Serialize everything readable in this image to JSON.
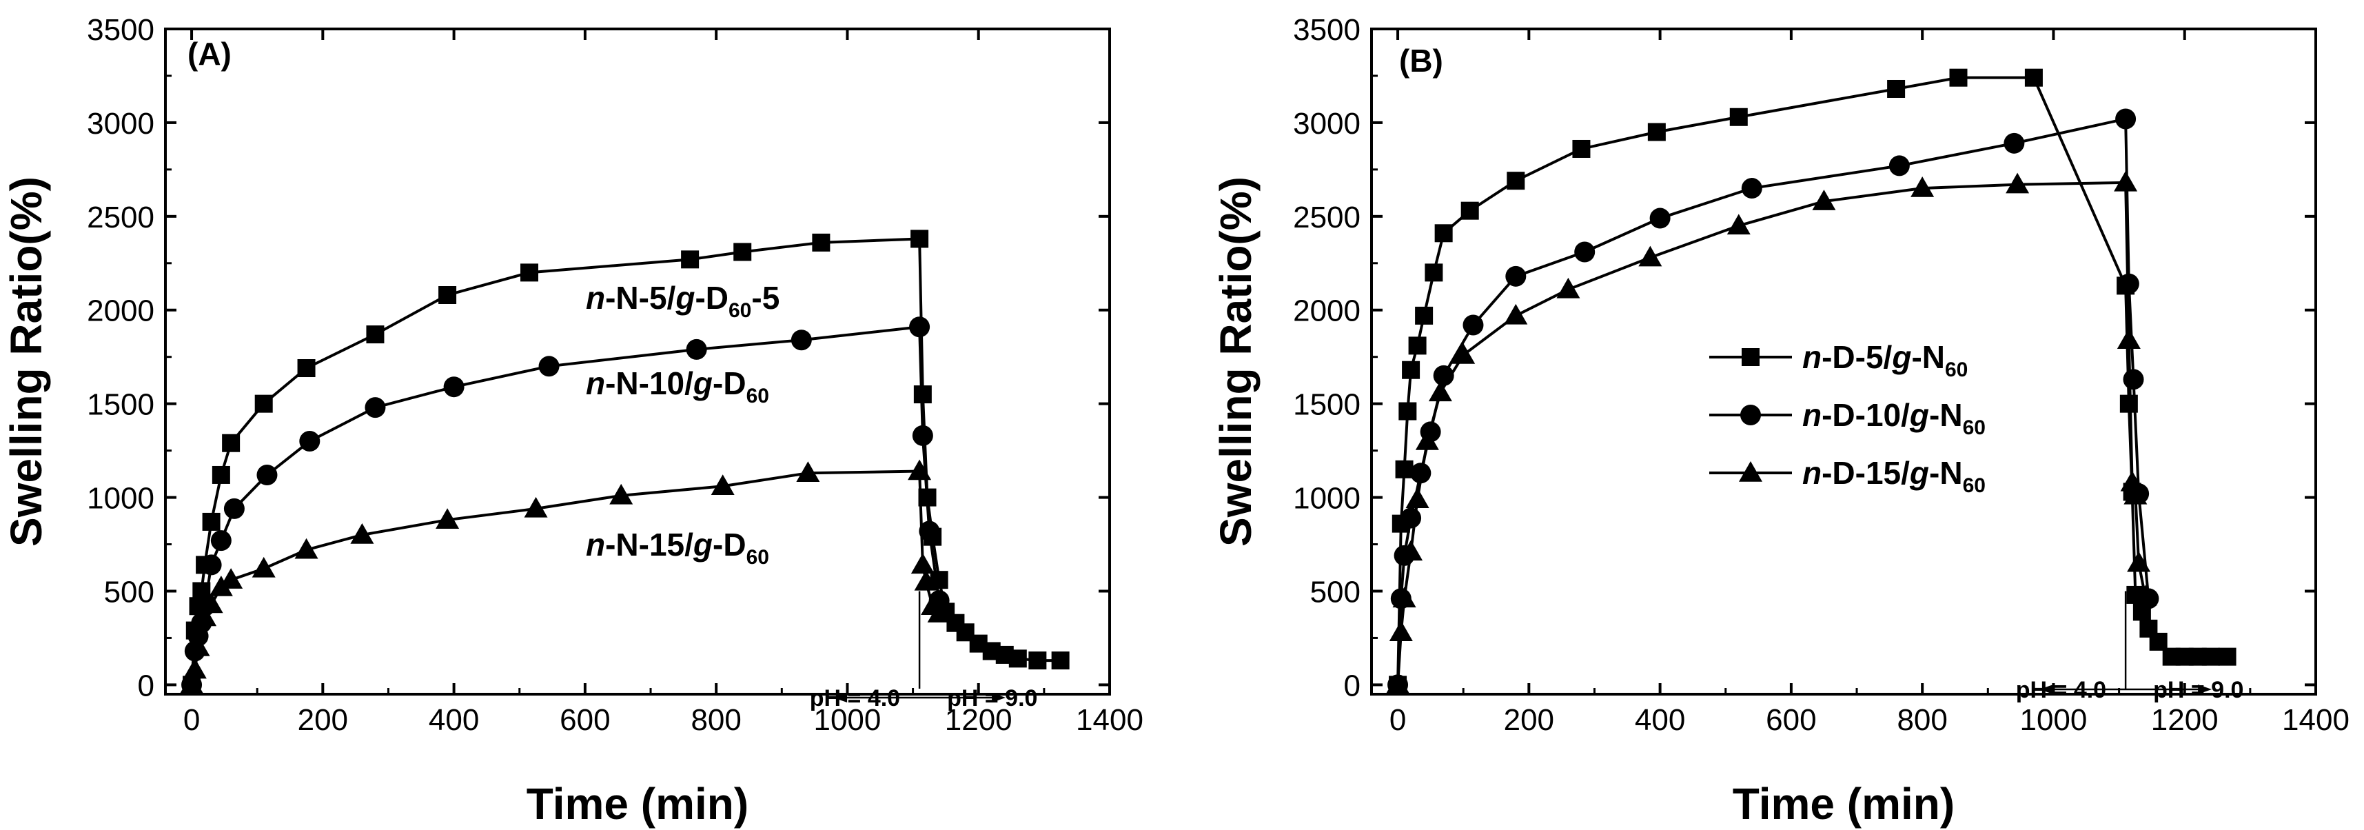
{
  "chart_data": [
    {
      "type": "line",
      "panel_label": "(A)",
      "xlabel": "Time (min)",
      "ylabel": "Swelling Ratio(%)",
      "xlim": [
        -40,
        1400
      ],
      "ylim": [
        -50,
        3500
      ],
      "xticks": [
        0,
        200,
        400,
        600,
        800,
        1000,
        1200,
        1400
      ],
      "yticks": [
        0,
        500,
        1000,
        1500,
        2000,
        2500,
        3000,
        3500
      ],
      "legend": "inline labels",
      "annotations": {
        "ph_left": "pH = 4.0",
        "ph_right": "pH = 9.0",
        "switch_time": 1110
      },
      "series": [
        {
          "name": "n-N-5/g-D60-5",
          "label_parts": [
            {
              "text": "n",
              "style": "i"
            },
            {
              "text": "-N-5/",
              "style": "n"
            },
            {
              "text": "g",
              "style": "i"
            },
            {
              "text": "-D",
              "style": "n"
            },
            {
              "text": "60",
              "style": "sub"
            },
            {
              "text": "-5",
              "style": "n"
            }
          ],
          "marker": "square",
          "x": [
            0,
            5,
            10,
            15,
            20,
            30,
            45,
            60,
            110,
            175,
            280,
            390,
            515,
            760,
            840,
            960,
            1110,
            1115,
            1122,
            1130,
            1140,
            1150,
            1165,
            1180,
            1200,
            1220,
            1240,
            1260,
            1290,
            1325
          ],
          "y": [
            0,
            290,
            420,
            500,
            640,
            870,
            1120,
            1290,
            1500,
            1690,
            1870,
            2080,
            2200,
            2270,
            2310,
            2360,
            2380,
            1550,
            1000,
            790,
            560,
            390,
            330,
            280,
            220,
            180,
            160,
            140,
            130,
            130
          ]
        },
        {
          "name": "n-N-10/g-D60",
          "label_parts": [
            {
              "text": "n",
              "style": "i"
            },
            {
              "text": "-N-10/",
              "style": "n"
            },
            {
              "text": "g",
              "style": "i"
            },
            {
              "text": "-D",
              "style": "n"
            },
            {
              "text": "60",
              "style": "sub"
            }
          ],
          "marker": "circle",
          "x": [
            0,
            5,
            10,
            15,
            20,
            30,
            45,
            65,
            115,
            180,
            280,
            400,
            545,
            770,
            930,
            1110,
            1115,
            1125,
            1140
          ],
          "y": [
            0,
            180,
            260,
            330,
            420,
            640,
            770,
            940,
            1120,
            1300,
            1480,
            1590,
            1700,
            1790,
            1840,
            1910,
            1330,
            820,
            450
          ]
        },
        {
          "name": "n-N-15/g-D60",
          "label_parts": [
            {
              "text": "n",
              "style": "i"
            },
            {
              "text": "-N-15/",
              "style": "n"
            },
            {
              "text": "g",
              "style": "i"
            },
            {
              "text": "-D",
              "style": "n"
            },
            {
              "text": "60",
              "style": "sub"
            }
          ],
          "marker": "triangle",
          "x": [
            0,
            5,
            10,
            20,
            30,
            45,
            60,
            110,
            175,
            260,
            390,
            525,
            655,
            810,
            940,
            1110,
            1115,
            1120,
            1130,
            1140
          ],
          "y": [
            0,
            80,
            200,
            360,
            430,
            520,
            560,
            620,
            720,
            800,
            880,
            940,
            1010,
            1060,
            1130,
            1140,
            640,
            550,
            420,
            380
          ]
        }
      ]
    },
    {
      "type": "line",
      "panel_label": "(B)",
      "xlabel": "Time (min)",
      "ylabel": "Swelling Ratio(%)",
      "xlim": [
        -40,
        1400
      ],
      "ylim": [
        -50,
        3500
      ],
      "xticks": [
        0,
        200,
        400,
        600,
        800,
        1000,
        1200,
        1400
      ],
      "yticks": [
        0,
        500,
        1000,
        1500,
        2000,
        2500,
        3000,
        3500
      ],
      "legend": "center-left",
      "annotations": {
        "ph_left": "pH = 4.0",
        "ph_right": "pH = 9.0",
        "switch_time": 1110
      },
      "series": [
        {
          "name": "n-D-5/g-N60",
          "label_parts": [
            {
              "text": "n",
              "style": "i"
            },
            {
              "text": "-D-5/",
              "style": "n"
            },
            {
              "text": "g",
              "style": "i"
            },
            {
              "text": "-N",
              "style": "n"
            },
            {
              "text": "60",
              "style": "sub"
            }
          ],
          "marker": "square",
          "x": [
            0,
            5,
            10,
            15,
            20,
            30,
            40,
            55,
            70,
            110,
            180,
            280,
            395,
            520,
            760,
            855,
            970,
            1110,
            1115,
            1120,
            1125,
            1135,
            1145,
            1160,
            1180,
            1200,
            1220,
            1240,
            1265
          ],
          "y": [
            0,
            860,
            1150,
            1460,
            1680,
            1810,
            1970,
            2200,
            2410,
            2530,
            2690,
            2860,
            2950,
            3030,
            3180,
            3240,
            3240,
            2130,
            1500,
            1030,
            480,
            390,
            300,
            230,
            150,
            150,
            150,
            150,
            150
          ]
        },
        {
          "name": "n-D-10/g-N60",
          "label_parts": [
            {
              "text": "n",
              "style": "i"
            },
            {
              "text": "-D-10/",
              "style": "n"
            },
            {
              "text": "g",
              "style": "i"
            },
            {
              "text": "-N",
              "style": "n"
            },
            {
              "text": "60",
              "style": "sub"
            }
          ],
          "marker": "circle",
          "x": [
            0,
            5,
            10,
            20,
            35,
            50,
            70,
            115,
            180,
            285,
            400,
            540,
            765,
            940,
            1110,
            1115,
            1122,
            1130,
            1145
          ],
          "y": [
            0,
            460,
            690,
            890,
            1130,
            1350,
            1650,
            1920,
            2180,
            2310,
            2490,
            2650,
            2770,
            2890,
            3020,
            2140,
            1630,
            1020,
            460
          ]
        },
        {
          "name": "n-D-15/g-N60",
          "label_parts": [
            {
              "text": "n",
              "style": "i"
            },
            {
              "text": "-D-15/",
              "style": "n"
            },
            {
              "text": "g",
              "style": "i"
            },
            {
              "text": "-N",
              "style": "n"
            },
            {
              "text": "60",
              "style": "sub"
            }
          ],
          "marker": "triangle",
          "x": [
            0,
            5,
            10,
            20,
            30,
            45,
            65,
            100,
            180,
            260,
            385,
            520,
            650,
            800,
            945,
            1110,
            1115,
            1120,
            1125,
            1130,
            1140
          ],
          "y": [
            0,
            280,
            460,
            710,
            990,
            1300,
            1560,
            1760,
            1970,
            2110,
            2280,
            2450,
            2580,
            2650,
            2670,
            2680,
            1840,
            1080,
            1010,
            650,
            470
          ]
        }
      ]
    }
  ]
}
